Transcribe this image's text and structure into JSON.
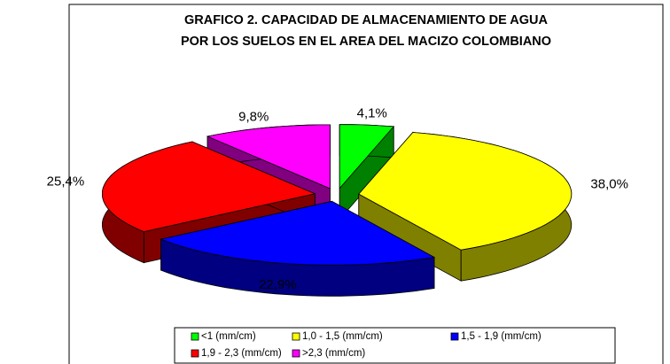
{
  "chart_data": {
    "type": "pie3d",
    "title": [
      "GRAFICO 2.  CAPACIDAD DE ALMACENAMIENTO DE AGUA",
      "POR LOS SUELOS EN EL AREA DEL MACIZO COLOMBIANO"
    ],
    "categories": [
      "<1 (mm/cm)",
      "1,0 - 1,5 (mm/cm)",
      "1,5 - 1,9 (mm/cm)",
      "1,9 - 2,3 (mm/cm)",
      ">2,3 (mm/cm)"
    ],
    "values": [
      4.1,
      38.0,
      22.9,
      25.4,
      9.8
    ],
    "value_labels": [
      "4,1%",
      "38,0%",
      "22,9%",
      "25,4%",
      "9,8%"
    ],
    "colors": [
      "#00ff00",
      "#ffff00",
      "#0000ff",
      "#ff0000",
      "#ff00ff"
    ],
    "legend": "bottom"
  }
}
